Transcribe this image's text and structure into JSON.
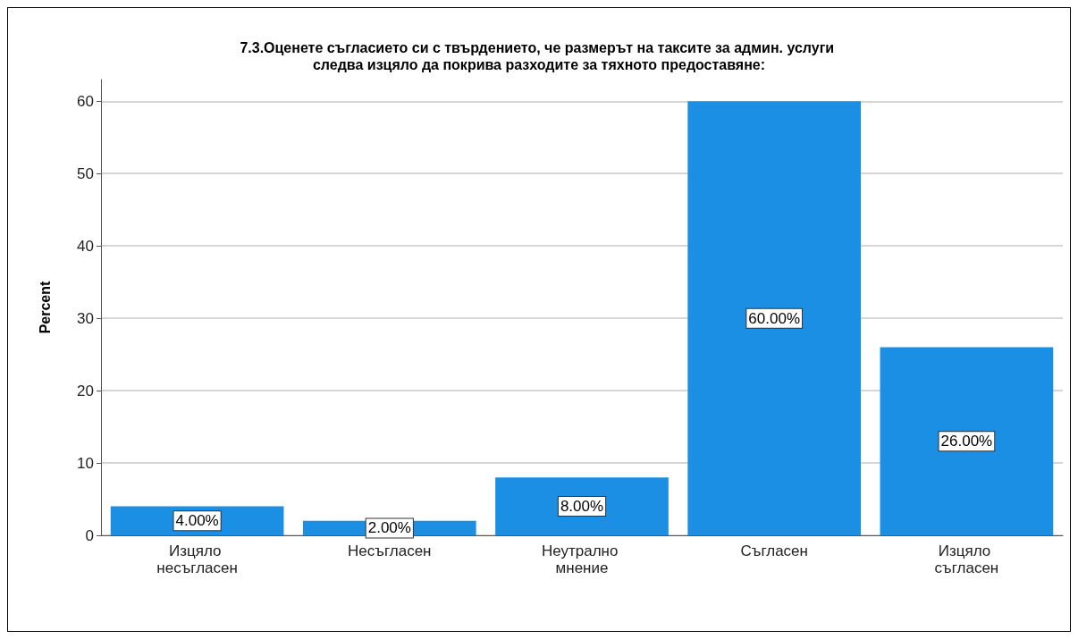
{
  "chart_data": {
    "type": "bar",
    "title": "7.3.Оценете съгласието си с твърдението, че размерът на таксите за админ. услуги следва изцяло да покрива разходите за тяхното предоставяне:",
    "ylabel": "Percent",
    "categories": [
      "Изцяло несъгласен",
      "Несъгласен",
      "Неутрално мнение",
      "Съгласен",
      "Изцяло съгласен"
    ],
    "values": [
      4,
      2,
      8,
      60,
      26
    ],
    "value_labels": [
      "4.00%",
      "2.00%",
      "8.00%",
      "60.00%",
      "26.00%"
    ],
    "color": "#1a8fe3",
    "ylim": [
      0,
      63
    ],
    "yticks": [
      0,
      10,
      20,
      30,
      40,
      50,
      60
    ],
    "grid": "y"
  }
}
